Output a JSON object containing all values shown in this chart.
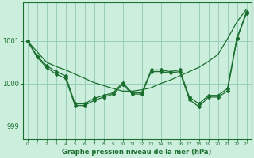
{
  "xlabel": "Graphe pression niveau de la mer (hPa)",
  "background_color": "#cceedd",
  "grid_color": "#99ccbb",
  "line_color": "#1a6e2e",
  "xlim": [
    -0.5,
    23.5
  ],
  "ylim": [
    998.7,
    1001.9
  ],
  "yticks": [
    999,
    1000,
    1001
  ],
  "xticks": [
    0,
    1,
    2,
    3,
    4,
    5,
    6,
    7,
    8,
    9,
    10,
    11,
    12,
    13,
    14,
    15,
    16,
    17,
    18,
    19,
    20,
    21,
    22,
    23
  ],
  "series1": [
    1001.0,
    1000.75,
    1000.5,
    1000.4,
    1000.32,
    1000.22,
    1000.12,
    1000.02,
    999.95,
    999.88,
    999.82,
    999.82,
    999.85,
    999.9,
    1000.0,
    1000.08,
    1000.18,
    1000.28,
    1000.38,
    1000.52,
    1000.68,
    1001.05,
    1001.45,
    1001.75
  ],
  "series2": [
    1001.0,
    1000.65,
    1000.42,
    1000.28,
    1000.18,
    999.52,
    999.52,
    999.65,
    999.72,
    999.78,
    1000.02,
    999.78,
    999.78,
    1000.32,
    1000.32,
    1000.28,
    1000.32,
    999.68,
    999.52,
    999.72,
    999.72,
    999.88,
    1001.08,
    1001.68
  ],
  "series3": [
    1001.0,
    1000.62,
    1000.38,
    1000.22,
    1000.12,
    999.48,
    999.48,
    999.6,
    999.68,
    999.75,
    999.98,
    999.75,
    999.75,
    1000.28,
    1000.28,
    1000.25,
    1000.28,
    999.62,
    999.45,
    999.68,
    999.68,
    999.82,
    1001.05,
    1001.65
  ]
}
